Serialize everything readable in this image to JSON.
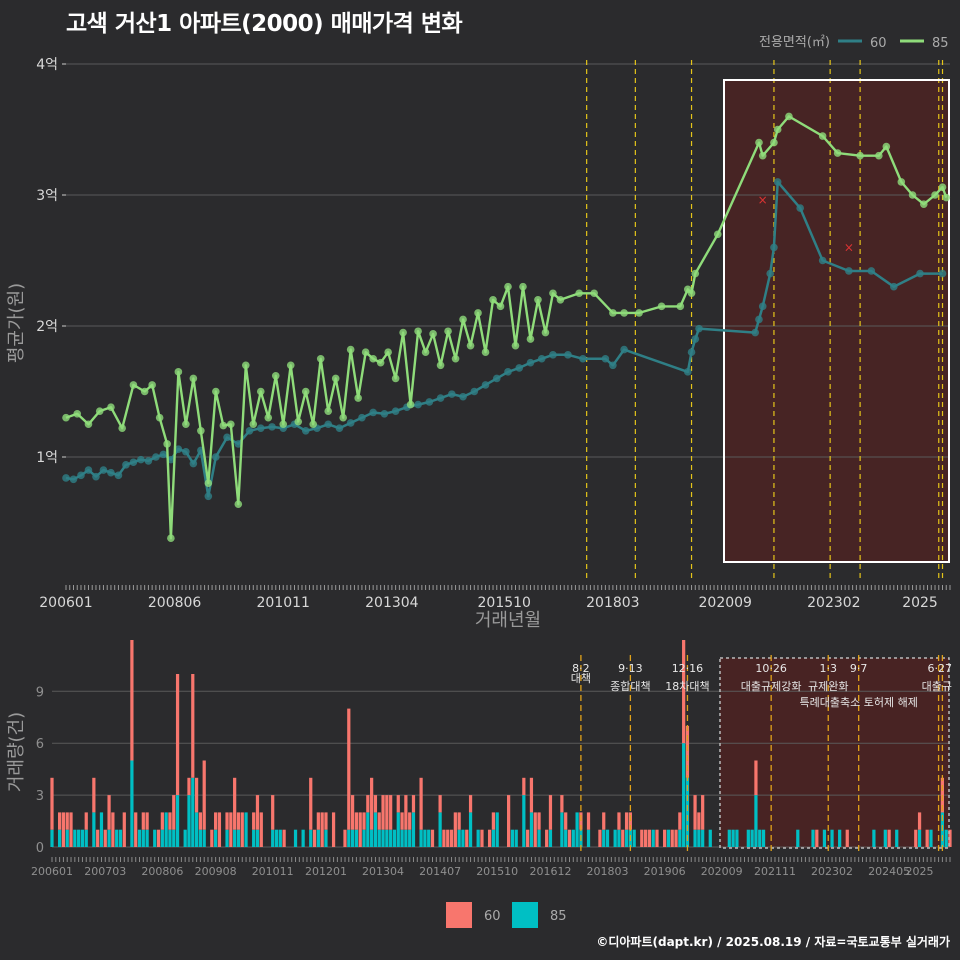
{
  "title": "고색 거산1 아파트(2000) 매매가격 변화",
  "footer": "©디아파트(dapt.kr) / 2025.08.19 / 자료=국토교통부 실거래가",
  "colors": {
    "background": "#2b2b2d",
    "s60_price": "#2f7f86",
    "s85_price": "#8fdc7a",
    "s60_volume": "#00bfc4",
    "s85_volume": "#f8766d",
    "event_line": "#e5c51a",
    "highlight": "#4a2323"
  },
  "chart_data": [
    {
      "type": "line",
      "title": "고색 거산1 아파트(2000) 매매가격 변화",
      "xlabel": "거래년월",
      "ylabel": "평균가(원)",
      "x_ticks": [
        "200601",
        "200806",
        "201011",
        "201304",
        "201510",
        "201803",
        "202009",
        "202302",
        "2025"
      ],
      "y_ticks": [
        "1억",
        "2억",
        "3억",
        "4억"
      ],
      "ylim": [
        0.2,
        4.0
      ],
      "legend": {
        "title": "전용면적(㎡)",
        "entries": [
          "60",
          "85"
        ],
        "position": "top-right"
      },
      "event_months": [
        "2017-08",
        "2018-09",
        "2019-12",
        "2021-10",
        "2023-01",
        "2023-09",
        "2025-06",
        "2025-07"
      ],
      "cancel_marks": [
        {
          "x": "2021-07",
          "y": 2.96
        },
        {
          "x": "2023-06",
          "y": 2.6
        }
      ],
      "series": [
        {
          "name": "60",
          "points": [
            [
              "2006-01",
              0.84
            ],
            [
              "2006-03",
              0.83
            ],
            [
              "2006-05",
              0.86
            ],
            [
              "2006-07",
              0.9
            ],
            [
              "2006-09",
              0.85
            ],
            [
              "2006-11",
              0.9
            ],
            [
              "2007-01",
              0.88
            ],
            [
              "2007-03",
              0.86
            ],
            [
              "2007-05",
              0.94
            ],
            [
              "2007-07",
              0.96
            ],
            [
              "2007-09",
              0.98
            ],
            [
              "2007-11",
              0.97
            ],
            [
              "2008-01",
              1.0
            ],
            [
              "2008-03",
              1.02
            ],
            [
              "2008-05",
              0.98
            ],
            [
              "2008-07",
              1.06
            ],
            [
              "2008-09",
              1.04
            ],
            [
              "2008-11",
              0.95
            ],
            [
              "2009-01",
              1.05
            ],
            [
              "2009-03",
              0.7
            ],
            [
              "2009-05",
              1.0
            ],
            [
              "2009-08",
              1.15
            ],
            [
              "2009-11",
              1.1
            ],
            [
              "2010-02",
              1.2
            ],
            [
              "2010-05",
              1.22
            ],
            [
              "2010-08",
              1.23
            ],
            [
              "2010-11",
              1.22
            ],
            [
              "2011-02",
              1.25
            ],
            [
              "2011-05",
              1.2
            ],
            [
              "2011-08",
              1.22
            ],
            [
              "2011-11",
              1.25
            ],
            [
              "2012-02",
              1.22
            ],
            [
              "2012-05",
              1.26
            ],
            [
              "2012-08",
              1.3
            ],
            [
              "2012-11",
              1.34
            ],
            [
              "2013-02",
              1.33
            ],
            [
              "2013-05",
              1.35
            ],
            [
              "2013-08",
              1.38
            ],
            [
              "2013-11",
              1.4
            ],
            [
              "2014-02",
              1.42
            ],
            [
              "2014-05",
              1.45
            ],
            [
              "2014-08",
              1.48
            ],
            [
              "2014-11",
              1.46
            ],
            [
              "2015-02",
              1.5
            ],
            [
              "2015-05",
              1.55
            ],
            [
              "2015-08",
              1.6
            ],
            [
              "2015-11",
              1.65
            ],
            [
              "2016-02",
              1.68
            ],
            [
              "2016-05",
              1.72
            ],
            [
              "2016-08",
              1.75
            ],
            [
              "2016-11",
              1.78
            ],
            [
              "2017-03",
              1.78
            ],
            [
              "2017-07",
              1.75
            ],
            [
              "2018-01",
              1.75
            ],
            [
              "2018-03",
              1.7
            ],
            [
              "2018-06",
              1.82
            ],
            [
              "2019-11",
              1.65
            ],
            [
              "2019-12",
              1.8
            ],
            [
              "2020-01",
              1.9
            ],
            [
              "2020-02",
              1.98
            ],
            [
              "2021-05",
              1.95
            ],
            [
              "2021-06",
              2.05
            ],
            [
              "2021-07",
              2.15
            ],
            [
              "2021-09",
              2.4
            ],
            [
              "2021-10",
              2.6
            ],
            [
              "2021-11",
              3.1
            ],
            [
              "2022-05",
              2.9
            ],
            [
              "2022-11",
              2.5
            ],
            [
              "2023-06",
              2.42
            ],
            [
              "2023-12",
              2.42
            ],
            [
              "2024-06",
              2.3
            ],
            [
              "2025-01",
              2.4
            ],
            [
              "2025-07",
              2.4
            ]
          ]
        },
        {
          "name": "85",
          "points": [
            [
              "2006-01",
              1.3
            ],
            [
              "2006-04",
              1.33
            ],
            [
              "2006-07",
              1.25
            ],
            [
              "2006-10",
              1.35
            ],
            [
              "2007-01",
              1.38
            ],
            [
              "2007-04",
              1.22
            ],
            [
              "2007-07",
              1.55
            ],
            [
              "2007-10",
              1.5
            ],
            [
              "2007-12",
              1.55
            ],
            [
              "2008-02",
              1.3
            ],
            [
              "2008-04",
              1.1
            ],
            [
              "2008-05",
              0.38
            ],
            [
              "2008-07",
              1.65
            ],
            [
              "2008-09",
              1.25
            ],
            [
              "2008-11",
              1.6
            ],
            [
              "2009-01",
              1.2
            ],
            [
              "2009-03",
              0.8
            ],
            [
              "2009-05",
              1.5
            ],
            [
              "2009-07",
              1.24
            ],
            [
              "2009-09",
              1.25
            ],
            [
              "2009-11",
              0.64
            ],
            [
              "2010-01",
              1.7
            ],
            [
              "2010-03",
              1.25
            ],
            [
              "2010-05",
              1.5
            ],
            [
              "2010-07",
              1.3
            ],
            [
              "2010-09",
              1.62
            ],
            [
              "2010-11",
              1.25
            ],
            [
              "2011-01",
              1.7
            ],
            [
              "2011-03",
              1.27
            ],
            [
              "2011-05",
              1.5
            ],
            [
              "2011-07",
              1.25
            ],
            [
              "2011-09",
              1.75
            ],
            [
              "2011-11",
              1.35
            ],
            [
              "2012-01",
              1.6
            ],
            [
              "2012-03",
              1.3
            ],
            [
              "2012-05",
              1.82
            ],
            [
              "2012-07",
              1.45
            ],
            [
              "2012-09",
              1.8
            ],
            [
              "2012-11",
              1.75
            ],
            [
              "2013-01",
              1.72
            ],
            [
              "2013-03",
              1.8
            ],
            [
              "2013-05",
              1.6
            ],
            [
              "2013-07",
              1.95
            ],
            [
              "2013-09",
              1.4
            ],
            [
              "2013-11",
              1.96
            ],
            [
              "2014-01",
              1.8
            ],
            [
              "2014-03",
              1.94
            ],
            [
              "2014-05",
              1.7
            ],
            [
              "2014-07",
              1.96
            ],
            [
              "2014-09",
              1.75
            ],
            [
              "2014-11",
              2.05
            ],
            [
              "2015-01",
              1.85
            ],
            [
              "2015-03",
              2.1
            ],
            [
              "2015-05",
              1.8
            ],
            [
              "2015-07",
              2.2
            ],
            [
              "2015-09",
              2.15
            ],
            [
              "2015-11",
              2.3
            ],
            [
              "2016-01",
              1.85
            ],
            [
              "2016-03",
              2.3
            ],
            [
              "2016-05",
              1.9
            ],
            [
              "2016-07",
              2.2
            ],
            [
              "2016-09",
              1.95
            ],
            [
              "2016-11",
              2.25
            ],
            [
              "2017-01",
              2.2
            ],
            [
              "2017-06",
              2.25
            ],
            [
              "2017-10",
              2.25
            ],
            [
              "2018-03",
              2.1
            ],
            [
              "2018-06",
              2.1
            ],
            [
              "2018-10",
              2.1
            ],
            [
              "2019-04",
              2.15
            ],
            [
              "2019-09",
              2.15
            ],
            [
              "2019-11",
              2.28
            ],
            [
              "2019-12",
              2.25
            ],
            [
              "2020-01",
              2.4
            ],
            [
              "2020-07",
              2.7
            ],
            [
              "2021-06",
              3.4
            ],
            [
              "2021-07",
              3.3
            ],
            [
              "2021-10",
              3.4
            ],
            [
              "2021-11",
              3.5
            ],
            [
              "2022-02",
              3.6
            ],
            [
              "2022-11",
              3.45
            ],
            [
              "2023-03",
              3.32
            ],
            [
              "2023-09",
              3.3
            ],
            [
              "2024-02",
              3.3
            ],
            [
              "2024-04",
              3.37
            ],
            [
              "2024-08",
              3.1
            ],
            [
              "2024-11",
              3.0
            ],
            [
              "2025-02",
              2.93
            ],
            [
              "2025-05",
              3.0
            ],
            [
              "2025-07",
              3.06
            ],
            [
              "2025-08",
              2.98
            ]
          ]
        }
      ]
    },
    {
      "type": "bar",
      "ylabel": "거래량(건)",
      "y_ticks": [
        "0",
        "3",
        "6",
        "9"
      ],
      "ylim": [
        0,
        11.5
      ],
      "x_ticks": [
        "200601",
        "200703",
        "200806",
        "200908",
        "201011",
        "201201",
        "201304",
        "201407",
        "201510",
        "201612",
        "201803",
        "201906",
        "202009",
        "202111",
        "202302",
        "202405",
        "2025"
      ],
      "legend": {
        "entries": [
          "60",
          "85"
        ],
        "position": "bottom"
      },
      "event_labels": [
        {
          "month": "2017-08",
          "date": "8·2",
          "text": "대책"
        },
        {
          "month": "2018-09",
          "date": "9·13",
          "text": "종합대책"
        },
        {
          "month": "2019-12",
          "date": "12·16",
          "text": "18차대책"
        },
        {
          "month": "2021-10",
          "date": "10·26",
          "text": "대출규제강화"
        },
        {
          "month": "2023-01",
          "date": "1·3",
          "text": "규제완화"
        },
        {
          "month": "2023-09",
          "date": "9·7",
          "text": "특례대출축소 토허제 해제"
        },
        {
          "month": "2025-06",
          "date": "6·27",
          "text": "대출규"
        }
      ],
      "series": [
        {
          "name": "60",
          "peaks": [
            [
              "2007-10",
              5
            ],
            [
              "2008-10",
              3
            ],
            [
              "2009-01",
              3
            ],
            [
              "2009-02",
              4
            ],
            [
              "2016-05",
              3
            ],
            [
              "2017-07",
              2
            ],
            [
              "2019-11",
              6
            ],
            [
              "2019-12",
              4
            ],
            [
              "2021-06",
              3
            ],
            [
              "2025-07",
              2
            ]
          ]
        },
        {
          "name": "85",
          "peaks": [
            [
              "2006-01",
              3
            ],
            [
              "2007-04",
              2
            ],
            [
              "2007-10",
              11
            ],
            [
              "2008-10",
              7
            ],
            [
              "2009-02",
              6
            ],
            [
              "2009-05",
              4
            ],
            [
              "2010-01",
              3
            ],
            [
              "2011-09",
              3
            ],
            [
              "2012-07",
              7
            ],
            [
              "2013-01",
              3
            ],
            [
              "2014-02",
              3
            ],
            [
              "2016-01",
              3
            ],
            [
              "2019-11",
              7
            ],
            [
              "2019-12",
              3
            ],
            [
              "2021-06",
              2
            ],
            [
              "2025-07",
              2
            ]
          ]
        }
      ]
    }
  ]
}
